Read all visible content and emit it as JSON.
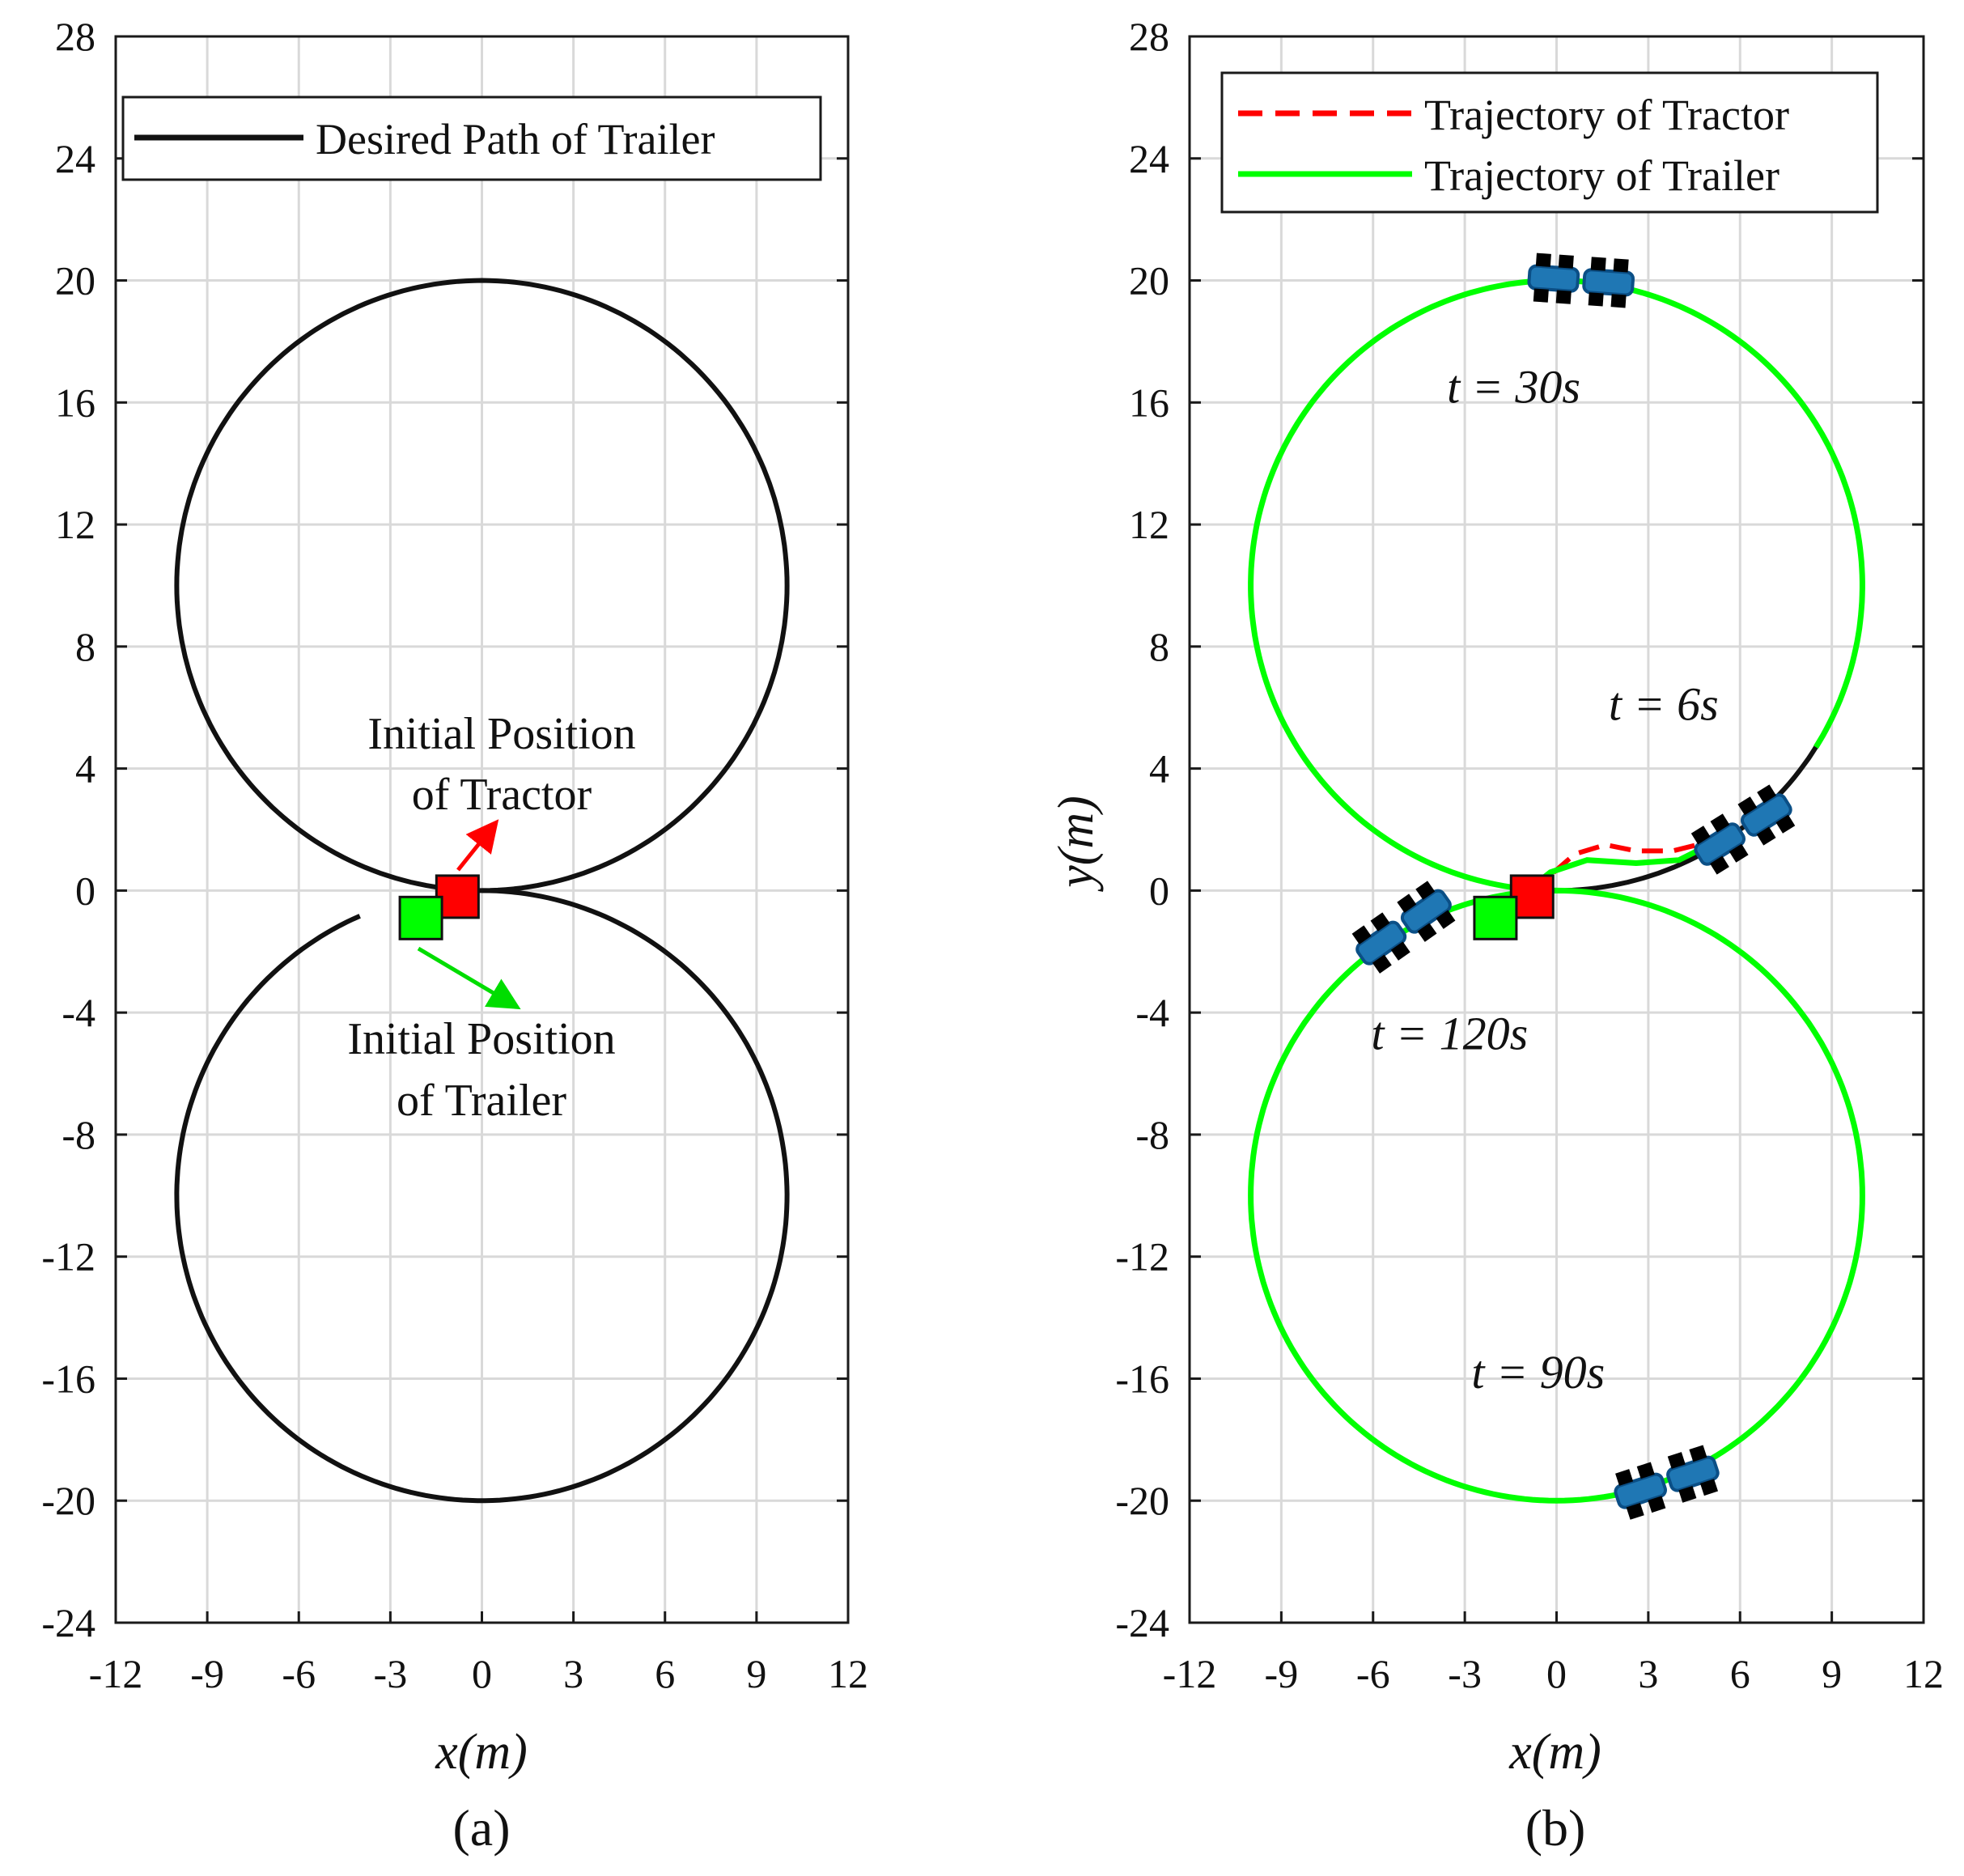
{
  "chart_data": [
    {
      "panel": "(a)",
      "type": "line",
      "xlabel": "x(m)",
      "ylabel": "",
      "xlim": [
        -12,
        12
      ],
      "ylim": [
        -24,
        28
      ],
      "xticks": [
        -12,
        -9,
        -6,
        -3,
        0,
        3,
        6,
        9,
        12
      ],
      "yticks": [
        -24,
        -20,
        -16,
        -12,
        -8,
        -4,
        0,
        4,
        8,
        12,
        16,
        20,
        24,
        28
      ],
      "grid": true,
      "legend": {
        "placement": "top",
        "entries": [
          "Desired Path of Trailer"
        ]
      },
      "series": [
        {
          "name": "Desired Path of Trailer",
          "color": "#111111",
          "style": "solid",
          "path": "figure-eight of two circles radius 10 centered (0,10) and (0,-10)",
          "lower_circle_start_x": -4
        }
      ],
      "markers": [
        {
          "name": "Initial Position of Tractor",
          "x": -0.8,
          "y": -0.2,
          "color": "#ff0000",
          "shape": "square"
        },
        {
          "name": "Initial Position of Trailer",
          "x": -2.0,
          "y": -0.9,
          "color": "#00ff00",
          "shape": "square"
        }
      ],
      "annotations": [
        {
          "text_lines": [
            "Initial Position",
            "of Tractor"
          ],
          "arrow_color": "#ff0000",
          "arrow_from": [
            -0.8,
            0.7
          ],
          "arrow_to": [
            0.8,
            2.1
          ]
        },
        {
          "text_lines": [
            "Initial Position",
            "of Trailer"
          ],
          "arrow_color": "#00dd00",
          "arrow_from": [
            -2.0,
            -1.9
          ],
          "arrow_to": [
            1.3,
            -3.9
          ]
        }
      ]
    },
    {
      "panel": "(b)",
      "type": "line",
      "xlabel": "x(m)",
      "ylabel": "y(m)",
      "xlim": [
        -12,
        12
      ],
      "ylim": [
        -24,
        28
      ],
      "xticks": [
        -12,
        -9,
        -6,
        -3,
        0,
        3,
        6,
        9,
        12
      ],
      "yticks": [
        -24,
        -20,
        -16,
        -12,
        -8,
        -4,
        0,
        4,
        8,
        12,
        16,
        20,
        24,
        28
      ],
      "grid": true,
      "legend": {
        "placement": "top",
        "entries": [
          "Trajectory of Tractor",
          "Trajectory of Trailer"
        ]
      },
      "series": [
        {
          "name": "Trajectory of Tractor",
          "color": "#ff0000",
          "style": "dashed"
        },
        {
          "name": "Trajectory of Trailer",
          "color": "#00ff00",
          "style": "solid"
        }
      ],
      "markers": [
        {
          "name": "Initial Position of Tractor",
          "x": -0.8,
          "y": -0.2,
          "color": "#ff0000",
          "shape": "square"
        },
        {
          "name": "Initial Position of Trailer",
          "x": -2.0,
          "y": -0.9,
          "color": "#00ff00",
          "shape": "square"
        }
      ],
      "time_labels": [
        {
          "text": "t = 30s",
          "x": -1.4,
          "y": 16.0
        },
        {
          "text": "t = 6s",
          "x": 3.5,
          "y": 5.6
        },
        {
          "text": "t = 120s",
          "x": -3.5,
          "y": -5.2
        },
        {
          "text": "t = 90s",
          "x": -0.6,
          "y": -16.3
        }
      ],
      "vehicles": [
        {
          "time": "t = 30s",
          "x": 0.8,
          "y": 20.0,
          "heading_deg": -4
        },
        {
          "time": "t = 6s",
          "x": 6.1,
          "y": 2.0,
          "heading_deg": 32
        },
        {
          "time": "t = 120s",
          "x": -5.0,
          "y": -1.2,
          "heading_deg": 35
        },
        {
          "time": "t = 90s",
          "x": 3.6,
          "y": -19.4,
          "heading_deg": 18
        }
      ]
    }
  ]
}
